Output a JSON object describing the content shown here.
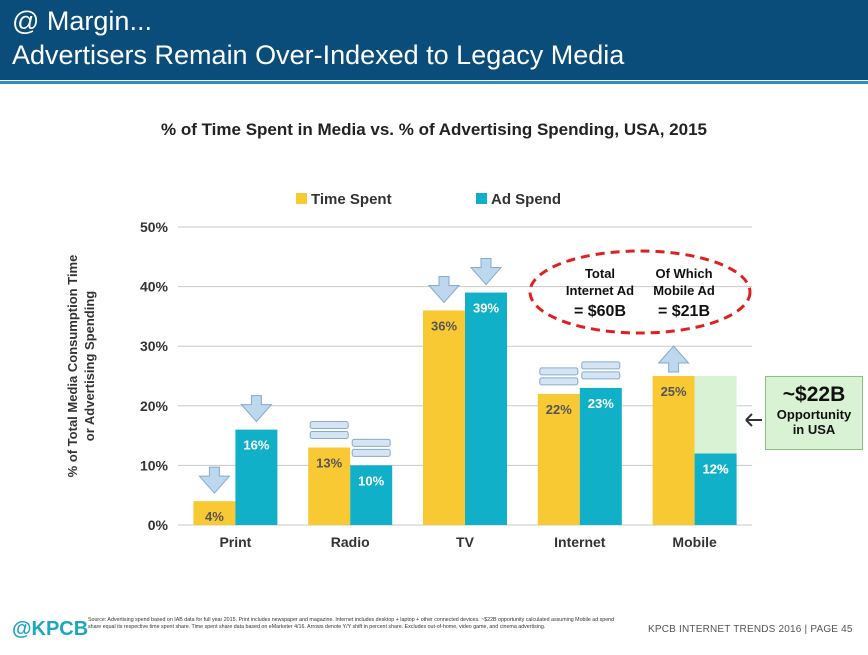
{
  "header": {
    "line1": "@ Margin...",
    "line2": "Advertisers Remain Over-Indexed to Legacy Media"
  },
  "chart_data": {
    "type": "bar",
    "title": "% of Time Spent in Media vs. % of Advertising Spending, USA, 2015",
    "ylabel_line1": "% of Total Media Consumption Time",
    "ylabel_line2": "or Advertising Spending",
    "xlabel": "",
    "ylim": [
      0,
      50
    ],
    "yticks": [
      0,
      10,
      20,
      30,
      40,
      50
    ],
    "ytick_labels": [
      "0%",
      "10%",
      "20%",
      "30%",
      "40%",
      "50%"
    ],
    "grid": true,
    "legend_placement": "top",
    "categories": [
      "Print",
      "Radio",
      "TV",
      "Internet",
      "Mobile"
    ],
    "series": [
      {
        "name": "Time Spent",
        "color": "#f9c934",
        "values": [
          4,
          13,
          36,
          22,
          25
        ],
        "labels": [
          "4%",
          "13%",
          "36%",
          "22%",
          "25%"
        ]
      },
      {
        "name": "Ad Spend",
        "color": "#0fb0c8",
        "values": [
          16,
          10,
          39,
          23,
          12
        ],
        "labels": [
          "16%",
          "10%",
          "39%",
          "23%",
          "12%"
        ]
      }
    ],
    "trend_arrows": [
      [
        "down",
        "down"
      ],
      [
        "flat",
        "flat"
      ],
      [
        "down",
        "down"
      ],
      [
        "flat",
        "flat"
      ],
      [
        "up",
        "up"
      ]
    ],
    "opportunity_gap": {
      "category": "Mobile",
      "from": 12,
      "to": 25,
      "color": "#d9f2d4"
    },
    "callout": {
      "amount": "~$22B",
      "line1": "Opportunity",
      "line2": "in USA"
    },
    "oval": {
      "left_line1": "Total",
      "left_line2": "Internet Ad",
      "left_value": "= $60B",
      "right_line1": "Of Which",
      "right_line2": "Mobile Ad",
      "right_value": "= $21B",
      "border_color": "#e02020"
    }
  },
  "footer": {
    "logo": "@KPCB",
    "source": "Source: Advertising spend based on IAB data for full year 2015. Print includes newspaper and magazine. Internet includes desktop + laptop + other connected devices. ~$22B opportunity calculated assuming Mobile ad spend share equal its respective time spent share. Time spent share data based on eMarketer 4/16. Arrows denote Y/Y shift in percent share. Excludes out-of-home, video game, and cinema advertising.",
    "page": "KPCB INTERNET TRENDS 2016 | PAGE 45"
  }
}
